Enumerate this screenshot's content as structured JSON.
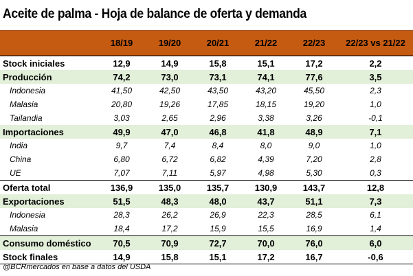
{
  "title": "Aceite de palma - Hoja de balance de oferta y demanda",
  "columns": [
    "",
    "18/19",
    "19/20",
    "20/21",
    "21/22",
    "22/23",
    "22/23 vs 21/22"
  ],
  "rows": [
    {
      "label": "Stock iniciales",
      "values": [
        "12,9",
        "14,9",
        "15,8",
        "15,1",
        "17,2",
        "2,2"
      ],
      "style": "bold"
    },
    {
      "label": "Producción",
      "values": [
        "74,2",
        "73,0",
        "73,1",
        "74,1",
        "77,6",
        "3,5"
      ],
      "style": "bold green"
    },
    {
      "label": "Indonesia",
      "values": [
        "41,50",
        "42,50",
        "43,50",
        "43,20",
        "45,50",
        "2,3"
      ],
      "style": "sub"
    },
    {
      "label": "Malasia",
      "values": [
        "20,80",
        "19,26",
        "17,85",
        "18,15",
        "19,20",
        "1,0"
      ],
      "style": "sub"
    },
    {
      "label": "Tailandia",
      "values": [
        "3,03",
        "2,65",
        "2,96",
        "3,38",
        "3,26",
        "-0,1"
      ],
      "style": "sub"
    },
    {
      "label": "Importaciones",
      "values": [
        "49,9",
        "47,0",
        "46,8",
        "41,8",
        "48,9",
        "7,1"
      ],
      "style": "bold green"
    },
    {
      "label": "India",
      "values": [
        "9,7",
        "7,4",
        "8,4",
        "8,0",
        "9,0",
        "1,0"
      ],
      "style": "sub"
    },
    {
      "label": "China",
      "values": [
        "6,80",
        "6,72",
        "6,82",
        "4,39",
        "7,20",
        "2,8"
      ],
      "style": "sub"
    },
    {
      "label": "UE",
      "values": [
        "7,07",
        "7,11",
        "5,97",
        "4,98",
        "5,30",
        "0,3"
      ],
      "style": "sub"
    },
    {
      "label": "Oferta total",
      "values": [
        "136,9",
        "135,0",
        "135,7",
        "130,9",
        "143,7",
        "12,8"
      ],
      "style": "bold"
    },
    {
      "label": "Exportaciones",
      "values": [
        "51,5",
        "48,3",
        "48,0",
        "43,7",
        "51,1",
        "7,3"
      ],
      "style": "bold green"
    },
    {
      "label": "Indonesia",
      "values": [
        "28,3",
        "26,2",
        "26,9",
        "22,3",
        "28,5",
        "6,1"
      ],
      "style": "sub"
    },
    {
      "label": "Malasia",
      "values": [
        "18,4",
        "17,2",
        "15,9",
        "15,5",
        "16,9",
        "1,4"
      ],
      "style": "sub"
    },
    {
      "label": "Consumo doméstico",
      "values": [
        "70,5",
        "70,9",
        "72,7",
        "70,0",
        "76,0",
        "6,0"
      ],
      "style": "bold green"
    },
    {
      "label": "Stock finales",
      "values": [
        "14,9",
        "15,8",
        "15,1",
        "17,2",
        "16,7",
        "-0,6"
      ],
      "style": "bold"
    }
  ],
  "source": "@BCRmercados en base a datos del USDA",
  "colors": {
    "header": "#c55a11",
    "highlight": "#e2efd9"
  }
}
